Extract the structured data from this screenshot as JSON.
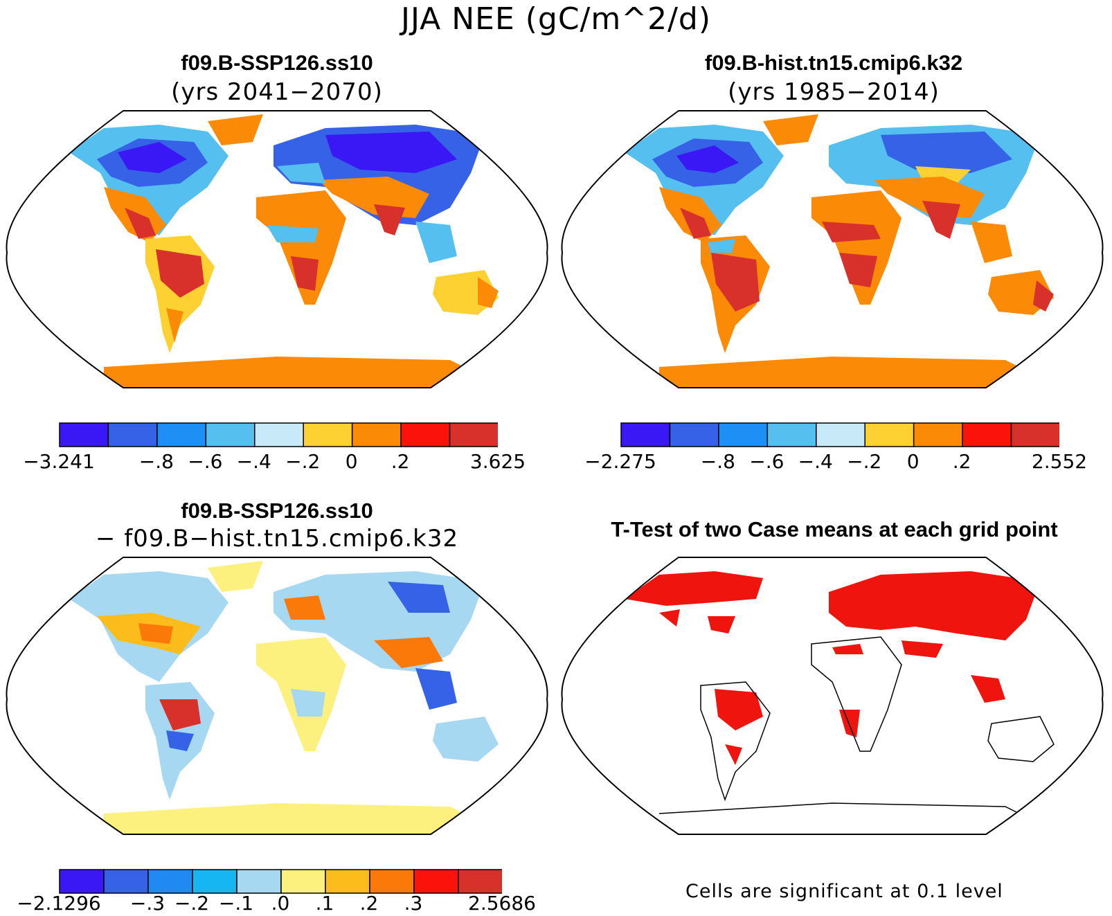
{
  "title": "JJA NEE (gC/m^2/d)",
  "panels": {
    "top_left": {
      "title": "f09.B-SSP126.ss10",
      "subtitle": "(yrs 2041−2070)",
      "colorbar": {
        "colors": [
          "#3a17f5",
          "#3562e6",
          "#1e8ff5",
          "#55bff0",
          "#c8e9f8",
          "#fdd132",
          "#fb8a07",
          "#fb130b",
          "#d8302a"
        ],
        "labels": [
          "−3.241",
          "−.8",
          "−.6",
          "−.4",
          "−.2",
          "0",
          ".2",
          "3.625"
        ]
      }
    },
    "top_right": {
      "title": "f09.B-hist.tn15.cmip6.k32",
      "subtitle": "(yrs 1985−2014)",
      "colorbar": {
        "colors": [
          "#3a17f5",
          "#3562e6",
          "#1e8ff5",
          "#55bff0",
          "#c8e9f8",
          "#fdd132",
          "#fb8a07",
          "#fb130b",
          "#d8302a"
        ],
        "labels": [
          "−2.275",
          "−.8",
          "−.6",
          "−.4",
          "−.2",
          "0",
          ".2",
          "2.552"
        ]
      }
    },
    "bottom_left": {
      "title": "f09.B-SSP126.ss10",
      "subtitle": "− f09.B−hist.tn15.cmip6.k32",
      "colorbar": {
        "colors": [
          "#3a17f5",
          "#3562e6",
          "#2189f2",
          "#16b6f2",
          "#a6d8f2",
          "#fcf07f",
          "#fbbc1c",
          "#fb7908",
          "#fb130b",
          "#d8302a"
        ],
        "labels": [
          "−2.1296",
          "−.3",
          "−.2",
          "−.1",
          ".0",
          ".1",
          ".2",
          ".3",
          "2.5686"
        ]
      }
    },
    "bottom_right": {
      "title": "T-Test of two Case means at each grid point",
      "note": "Cells are significant at 0.1 level",
      "color": "#f0140e"
    }
  }
}
